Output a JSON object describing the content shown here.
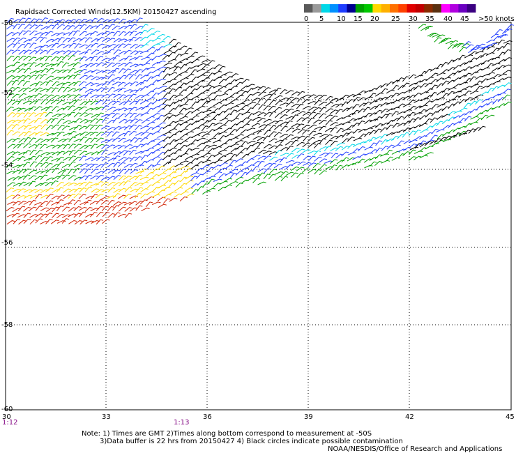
{
  "title": "Rapidsact Corrected Winds(12.5KM) 20150427 ascending",
  "colorbar": {
    "unit_label": ">50 knots",
    "tick_labels": [
      "0",
      "5",
      "10",
      "15",
      "20",
      "25",
      "30",
      "35",
      "40",
      "45"
    ],
    "colors": [
      "#5a5a5a",
      "#9a9a9a",
      "#00d8e8",
      "#0090ff",
      "#1e3cff",
      "#000090",
      "#00a000",
      "#00c800",
      "#ffd800",
      "#ffb000",
      "#ff7000",
      "#ff4000",
      "#e00000",
      "#c00000",
      "#8a2a00",
      "#5a3010",
      "#ff00ff",
      "#b000e0",
      "#6a00c0",
      "#3a0080"
    ]
  },
  "axes": {
    "lon_labels": [
      "30",
      "33",
      "36",
      "39",
      "42",
      "45"
    ],
    "lat_labels": [
      "-50",
      "-52",
      "-54",
      "-56",
      "-58",
      "-60"
    ]
  },
  "times": [
    "1:12",
    "1:13"
  ],
  "notes": {
    "line1": "Note: 1) Times are GMT 2)Times along bottom correspond to measurement at -50S",
    "line2": "3)Data buffer is 22 hrs from 20150427 4) Black circles indicate possible contamination",
    "credit": "NOAA/NESDIS/Office of Research and Applications"
  },
  "wind_colors": {
    "cyan": "#00d8e8",
    "light_blue": "#0090ff",
    "blue": "#1e3cff",
    "green": "#00a000",
    "yellow": "#ffd800",
    "orange": "#ff7000",
    "red": "#d02000",
    "black": "#000000"
  }
}
